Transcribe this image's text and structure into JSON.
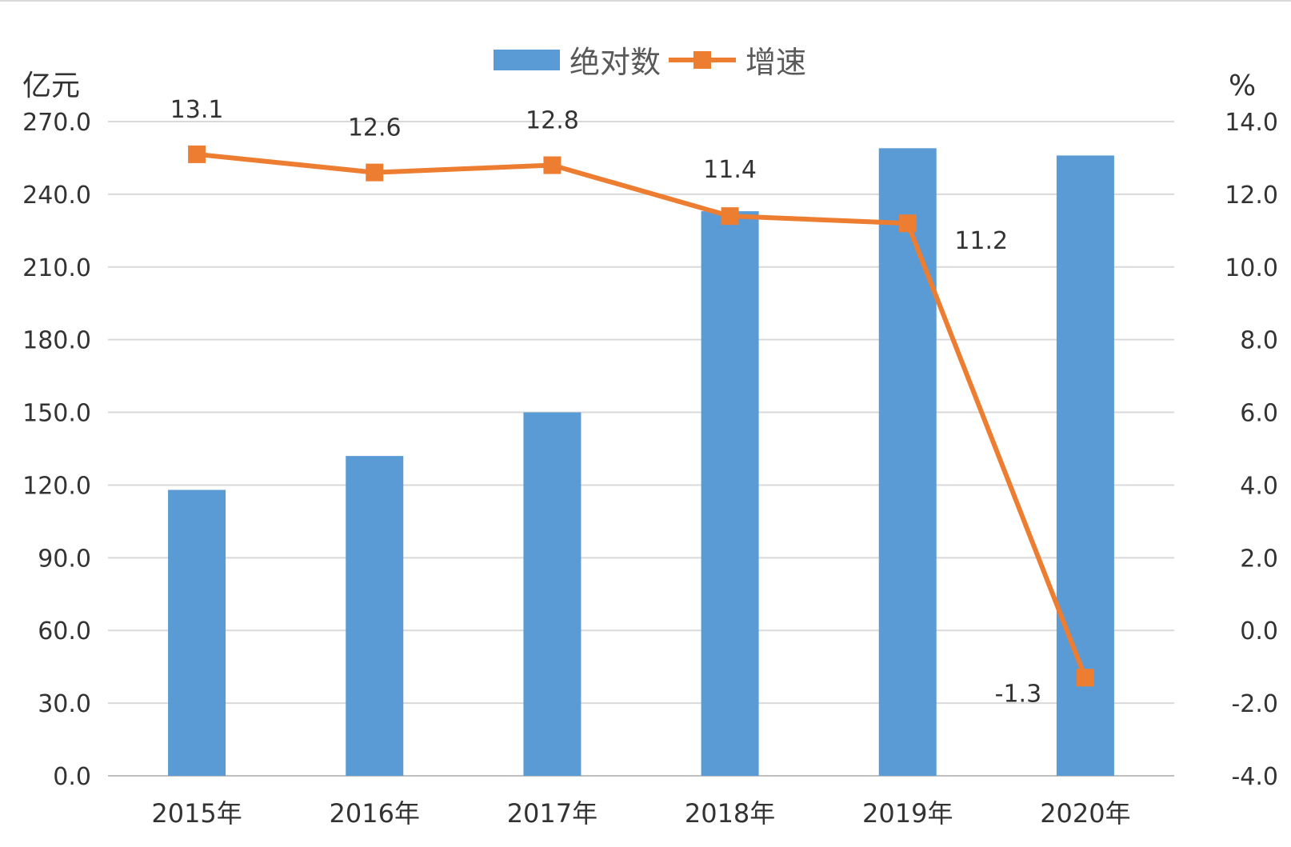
{
  "chart_data": {
    "type": "bar",
    "categories": [
      "2015年",
      "2016年",
      "2017年",
      "2018年",
      "2019年",
      "2020年"
    ],
    "series": [
      {
        "name": "绝对数",
        "type": "bar",
        "axis": "left",
        "color": "#5b9bd5",
        "values": [
          118,
          132,
          150,
          233,
          259,
          256
        ]
      },
      {
        "name": "增速",
        "type": "line",
        "axis": "right",
        "color": "#ed7d31",
        "values": [
          13.1,
          12.6,
          12.8,
          11.4,
          11.2,
          -1.3
        ],
        "data_labels": [
          "13.1",
          "12.6",
          "12.8",
          "11.4",
          "11.2",
          "-1.3"
        ]
      }
    ],
    "left_axis": {
      "unit": "亿元",
      "ylim": [
        0,
        270
      ],
      "ticks": [
        "0.0",
        "30.0",
        "60.0",
        "90.0",
        "120.0",
        "150.0",
        "180.0",
        "210.0",
        "240.0",
        "270.0"
      ]
    },
    "right_axis": {
      "unit": "%",
      "ylim": [
        -4,
        14
      ],
      "ticks": [
        "-4.0",
        "-2.0",
        "0.0",
        "2.0",
        "4.0",
        "6.0",
        "8.0",
        "10.0",
        "12.0",
        "14.0"
      ]
    },
    "legend": {
      "position": "top-center"
    },
    "grid": true
  }
}
